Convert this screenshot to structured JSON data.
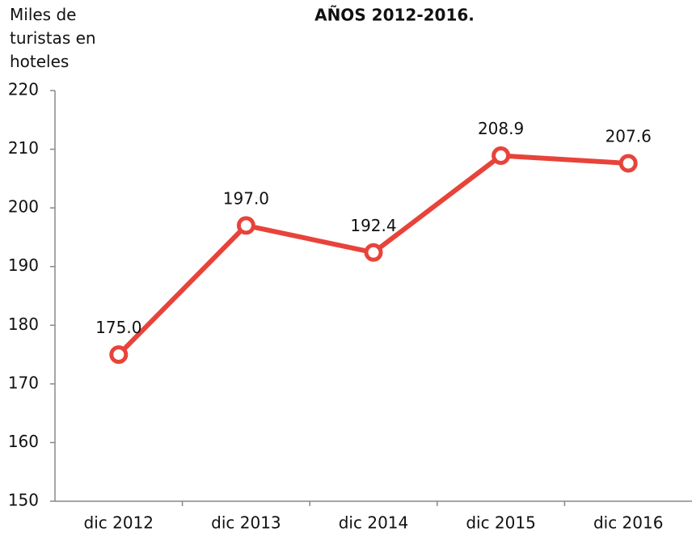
{
  "chart_data": {
    "type": "line",
    "title": "AÑOS 2012-2016.",
    "y_label": "Miles de turistas en hoteles",
    "categories": [
      "dic 2012",
      "dic 2013",
      "dic 2014",
      "dic 2015",
      "dic 2016"
    ],
    "series": [
      {
        "name": "Miles de turistas en hoteles",
        "color": "#e8433a",
        "values": [
          175.0,
          197.0,
          192.4,
          208.9,
          207.6
        ],
        "value_labels": [
          "175.0",
          "197.0",
          "192.4",
          "208.9",
          "207.6"
        ]
      }
    ],
    "ylim": [
      150,
      220
    ],
    "yticks": [
      150,
      160,
      170,
      180,
      190,
      200,
      210,
      220
    ],
    "grid": false
  }
}
